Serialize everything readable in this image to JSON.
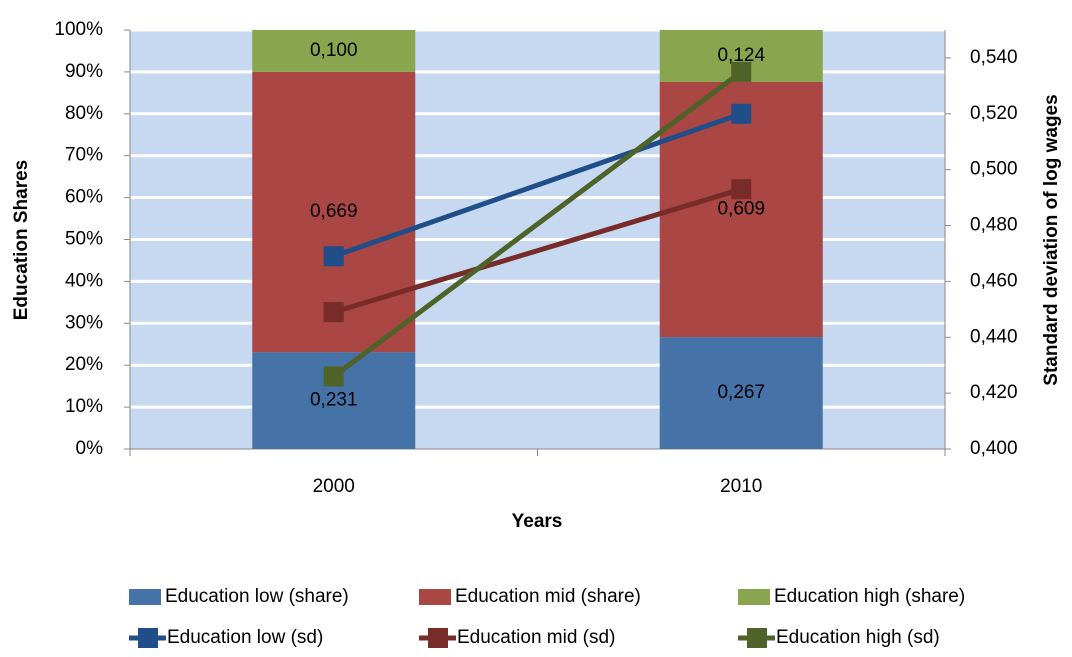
{
  "chart_data": {
    "type": "bar",
    "stacked": true,
    "x_label": "Years",
    "y_label": "Education Shares",
    "y2_label": "Standard deviation of log wages",
    "categories": [
      "2000",
      "2010"
    ],
    "series": [
      {
        "name": "Education low (share)",
        "type": "bar",
        "color": "#4572a7",
        "values": [
          23.1,
          26.7
        ],
        "value_labels": [
          "0,231",
          "0,267"
        ]
      },
      {
        "name": "Education mid (share)",
        "type": "bar",
        "color": "#aa4643",
        "values": [
          66.9,
          60.9
        ],
        "value_labels": [
          "0,669",
          "0,609"
        ]
      },
      {
        "name": "Education high (share)",
        "type": "bar",
        "color": "#89a54e",
        "values": [
          10.0,
          12.4
        ],
        "value_labels": [
          "0,100",
          "0,124"
        ]
      },
      {
        "name": "Education low (sd)",
        "type": "line",
        "axis": "y2",
        "color": "#1f4e89",
        "values": [
          0.469,
          0.52
        ]
      },
      {
        "name": "Education mid (sd)",
        "type": "line",
        "axis": "y2",
        "color": "#772c2a",
        "values": [
          0.449,
          0.493
        ]
      },
      {
        "name": "Education high (sd)",
        "type": "line",
        "axis": "y2",
        "color": "#4f6228",
        "values": [
          0.426,
          0.535
        ]
      }
    ],
    "ylim": [
      0,
      100
    ],
    "yticks": [
      {
        "value": 0,
        "label": "0%"
      },
      {
        "value": 10,
        "label": "10%"
      },
      {
        "value": 20,
        "label": "20%"
      },
      {
        "value": 30,
        "label": "30%"
      },
      {
        "value": 40,
        "label": "40%"
      },
      {
        "value": 50,
        "label": "50%"
      },
      {
        "value": 60,
        "label": "60%"
      },
      {
        "value": 70,
        "label": "70%"
      },
      {
        "value": 80,
        "label": "80%"
      },
      {
        "value": 90,
        "label": "90%"
      },
      {
        "value": 100,
        "label": "100%"
      }
    ],
    "y2lim": [
      0.4,
      0.55
    ],
    "y2ticks": [
      {
        "value": 0.4,
        "label": "0,400"
      },
      {
        "value": 0.42,
        "label": "0,420"
      },
      {
        "value": 0.44,
        "label": "0,440"
      },
      {
        "value": 0.46,
        "label": "0,460"
      },
      {
        "value": 0.48,
        "label": "0,480"
      },
      {
        "value": 0.5,
        "label": "0,500"
      },
      {
        "value": 0.52,
        "label": "0,520"
      },
      {
        "value": 0.54,
        "label": "0,540"
      }
    ],
    "grid": true,
    "plot_background": "#c6d9f1",
    "legend": "bottom"
  }
}
